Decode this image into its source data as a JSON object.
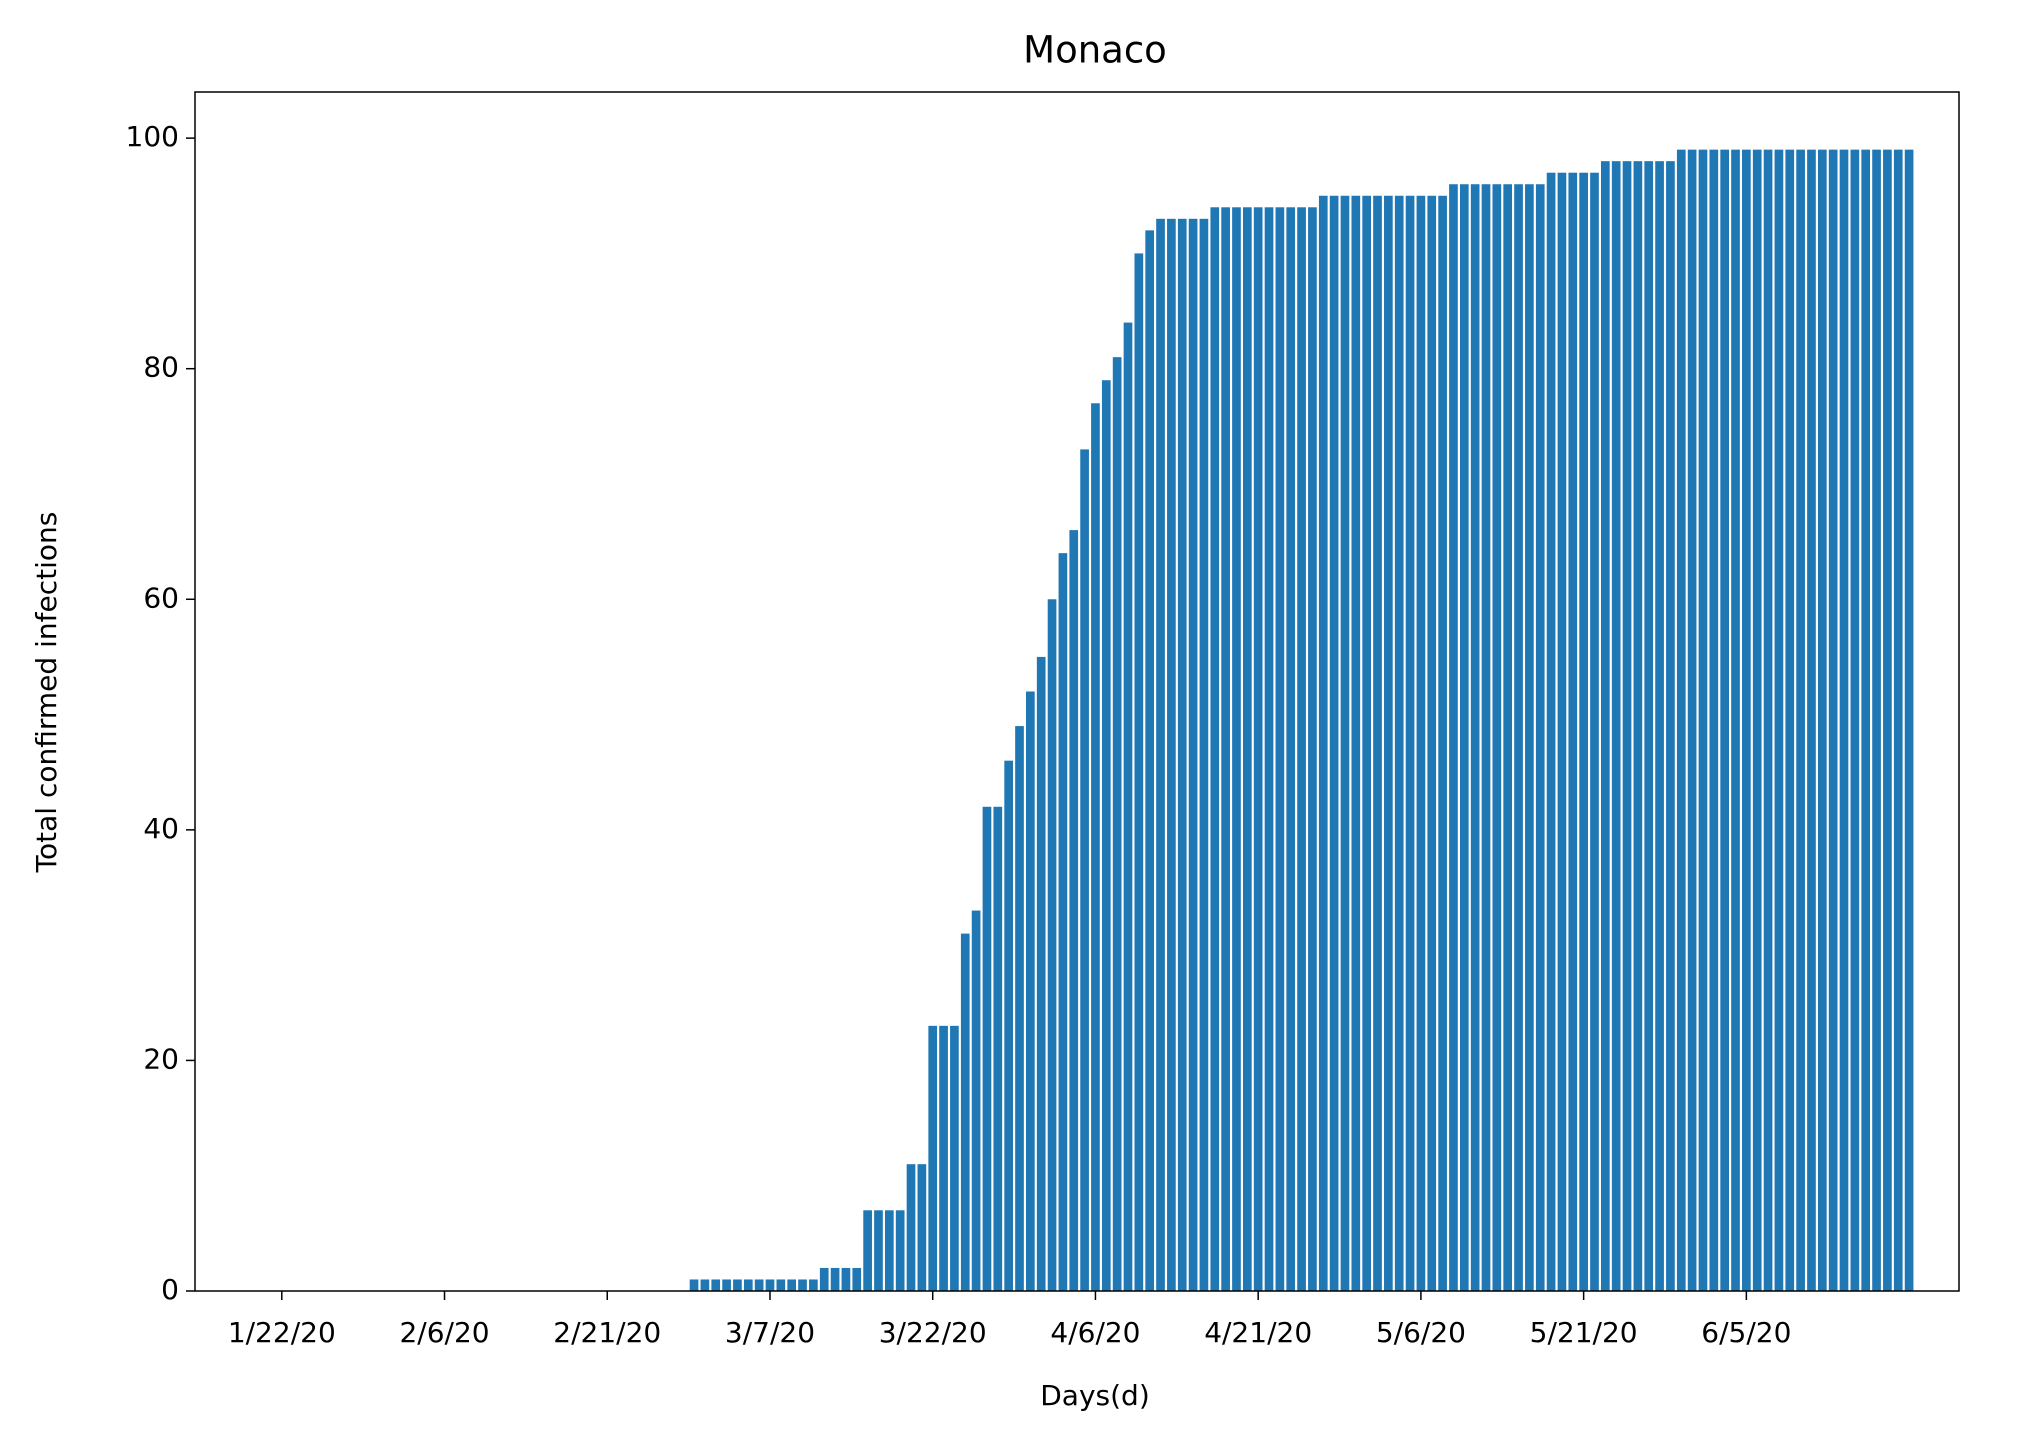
{
  "chart_data": {
    "type": "bar",
    "title": "Monaco",
    "x_label": "Days(d)",
    "y_label": "Total confirmed infections",
    "categories": [
      "1/22/20",
      null,
      null,
      null,
      null,
      null,
      null,
      null,
      null,
      null,
      null,
      null,
      null,
      null,
      null,
      "2/6/20",
      null,
      null,
      null,
      null,
      null,
      null,
      null,
      null,
      null,
      null,
      null,
      null,
      null,
      null,
      "2/21/20",
      null,
      null,
      null,
      null,
      null,
      null,
      null,
      null,
      null,
      null,
      null,
      null,
      null,
      null,
      "3/7/20",
      null,
      null,
      null,
      null,
      null,
      null,
      null,
      null,
      null,
      null,
      null,
      null,
      null,
      null,
      "3/22/20",
      null,
      null,
      null,
      null,
      null,
      null,
      null,
      null,
      null,
      null,
      null,
      null,
      null,
      null,
      "4/6/20",
      null,
      null,
      null,
      null,
      null,
      null,
      null,
      null,
      null,
      null,
      null,
      null,
      null,
      null,
      "4/21/20",
      null,
      null,
      null,
      null,
      null,
      null,
      null,
      null,
      null,
      null,
      null,
      null,
      null,
      null,
      "5/6/20",
      null,
      null,
      null,
      null,
      null,
      null,
      null,
      null,
      null,
      null,
      null,
      null,
      null,
      null,
      "5/21/20",
      null,
      null,
      null,
      null,
      null,
      null,
      null,
      null,
      null,
      null,
      null,
      null,
      null,
      null,
      "6/5/20",
      null,
      null,
      null,
      null,
      null,
      null,
      null,
      null,
      null,
      null,
      null,
      null,
      null,
      null,
      null
    ],
    "values": [
      0,
      0,
      0,
      0,
      0,
      0,
      0,
      0,
      0,
      0,
      0,
      0,
      0,
      0,
      0,
      0,
      0,
      0,
      0,
      0,
      0,
      0,
      0,
      0,
      0,
      0,
      0,
      0,
      0,
      0,
      0,
      0,
      0,
      0,
      0,
      0,
      0,
      0,
      1,
      1,
      1,
      1,
      1,
      1,
      1,
      1,
      1,
      1,
      1,
      1,
      2,
      2,
      2,
      2,
      7,
      7,
      7,
      7,
      11,
      11,
      23,
      23,
      23,
      31,
      33,
      42,
      42,
      46,
      49,
      52,
      55,
      60,
      64,
      66,
      73,
      77,
      79,
      81,
      84,
      90,
      92,
      93,
      93,
      93,
      93,
      93,
      94,
      94,
      94,
      94,
      94,
      94,
      94,
      94,
      94,
      94,
      95,
      95,
      95,
      95,
      95,
      95,
      95,
      95,
      95,
      95,
      95,
      95,
      96,
      96,
      96,
      96,
      96,
      96,
      96,
      96,
      96,
      97,
      97,
      97,
      97,
      97,
      98,
      98,
      98,
      98,
      98,
      98,
      98,
      99,
      99,
      99,
      99,
      99,
      99,
      99,
      99,
      99,
      99,
      99,
      99,
      99,
      99,
      99,
      99,
      99,
      99,
      99,
      99,
      99,
      99
    ],
    "color": "#1f77b4",
    "ylim": [
      0,
      104
    ],
    "yticks": [
      0,
      20,
      40,
      60,
      80,
      100
    ],
    "grid": false
  }
}
